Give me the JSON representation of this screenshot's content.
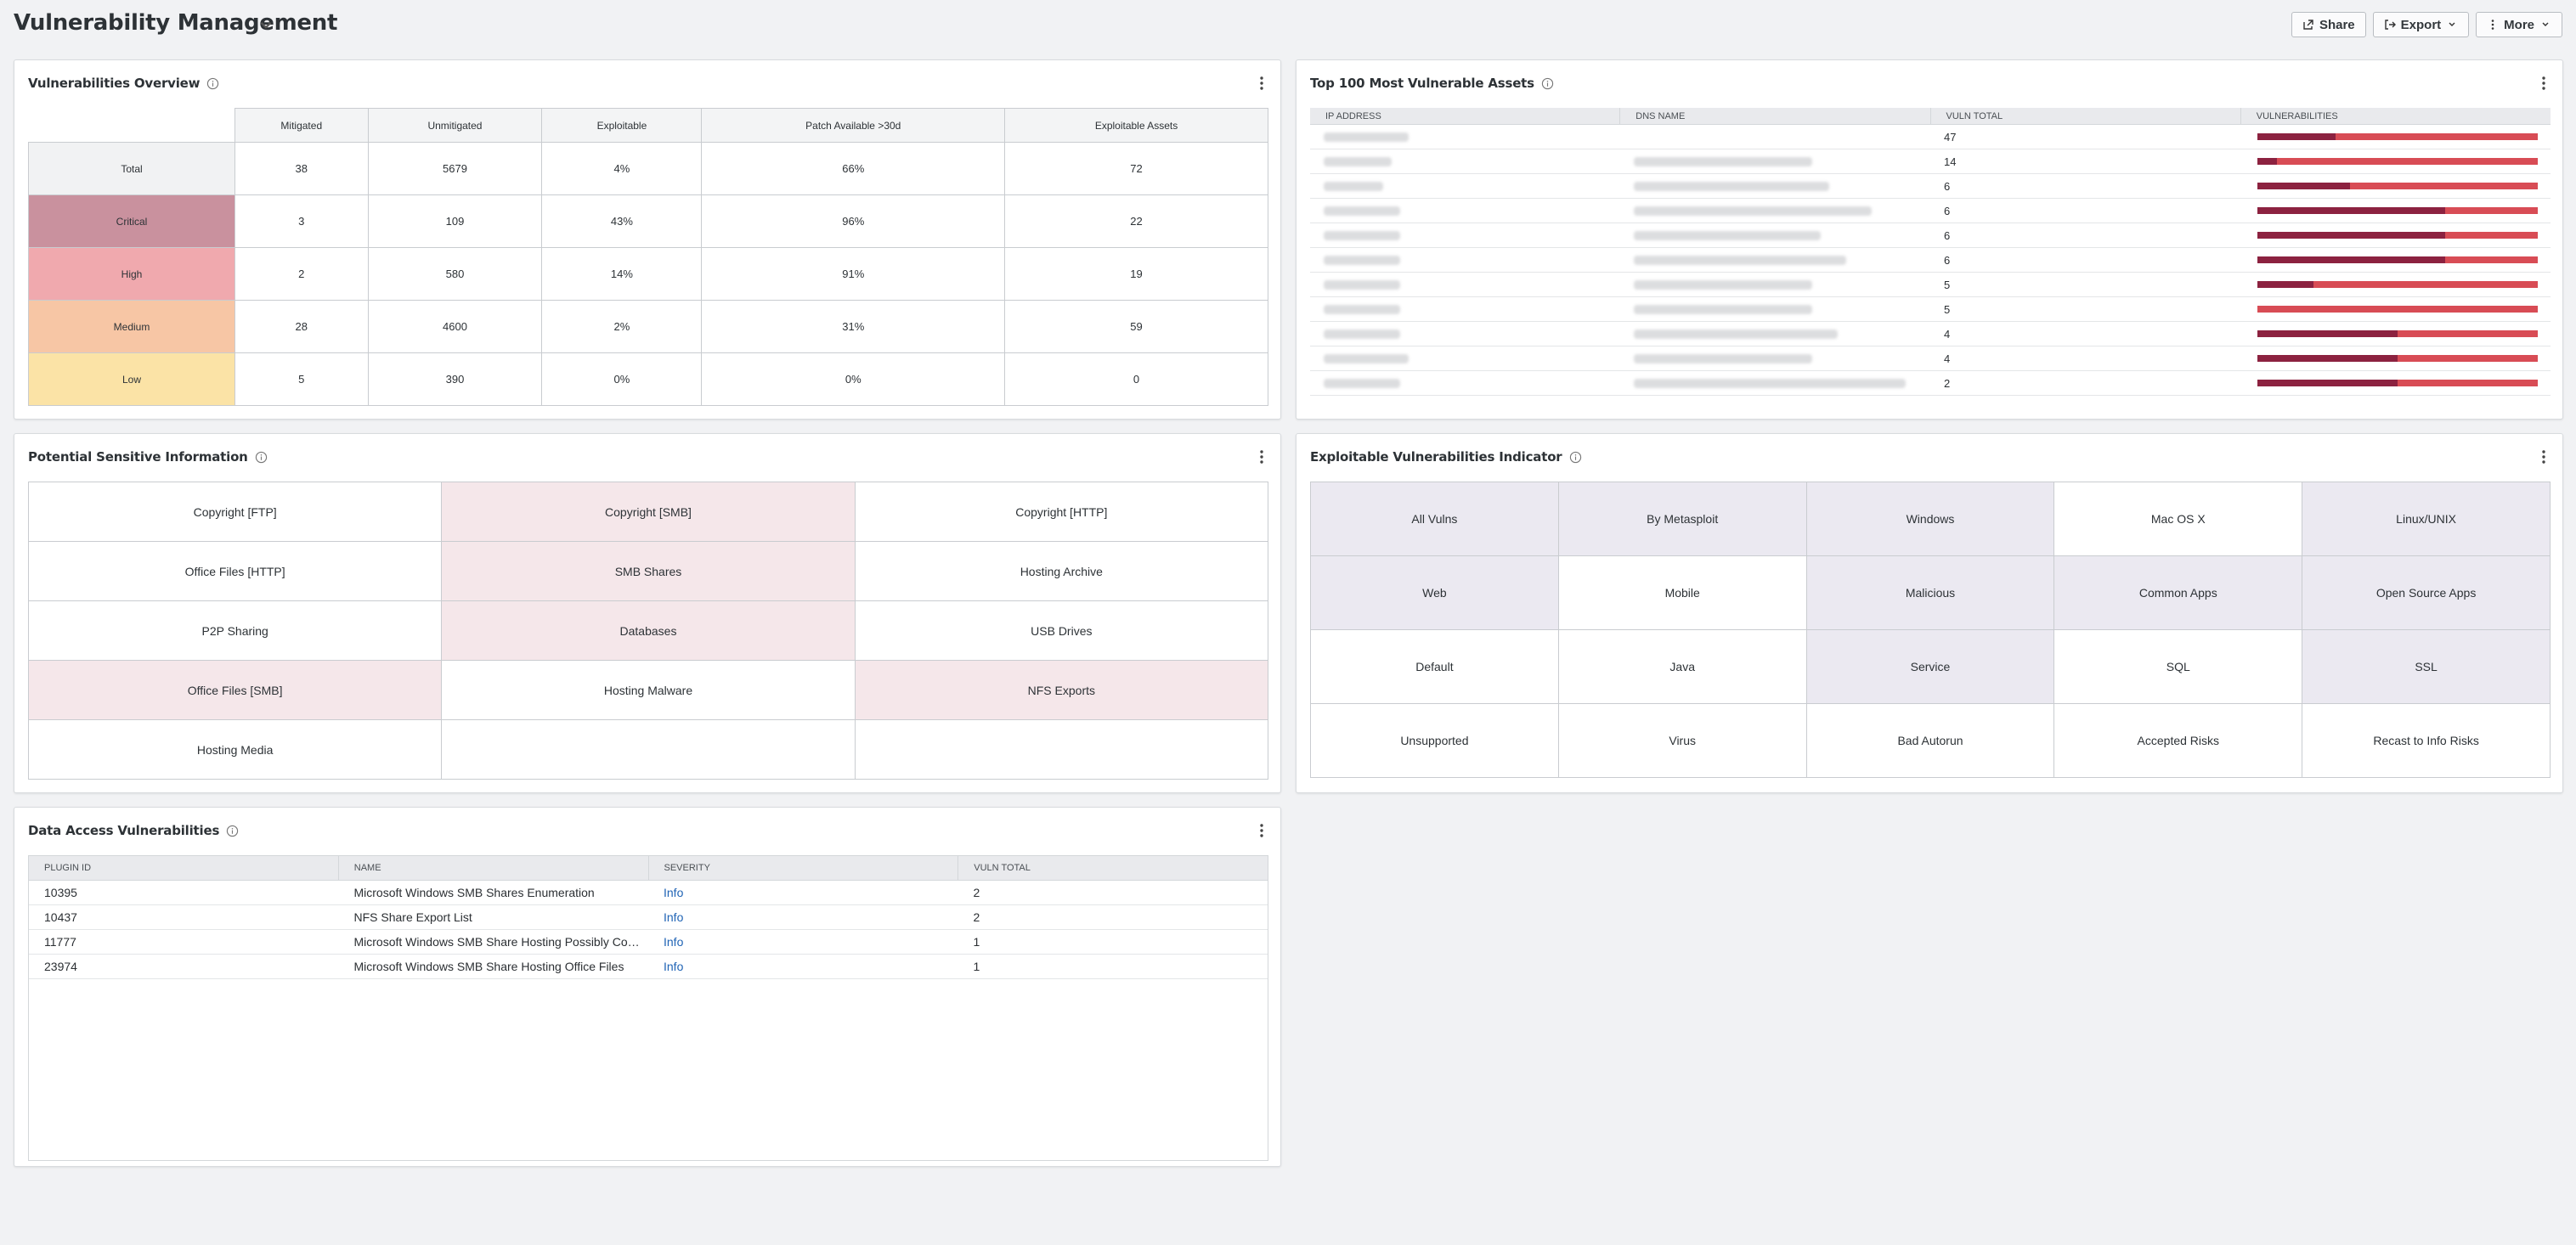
{
  "header": {
    "title": "Vulnerability Management",
    "share_label": "Share",
    "export_label": "Export",
    "more_label": "More"
  },
  "vuln_overview": {
    "title": "Vulnerabilities Overview",
    "columns": [
      "Mitigated",
      "Unmitigated",
      "Exploitable",
      "Patch Available >30d",
      "Exploitable Assets"
    ],
    "rows": [
      {
        "label": "Total",
        "color": "#f1f2f3",
        "values": [
          "38",
          "5679",
          "4%",
          "66%",
          "72"
        ]
      },
      {
        "label": "Critical",
        "color": "#c9919e",
        "values": [
          "3",
          "109",
          "43%",
          "96%",
          "22"
        ]
      },
      {
        "label": "High",
        "color": "#f0a9ae",
        "values": [
          "2",
          "580",
          "14%",
          "91%",
          "19"
        ]
      },
      {
        "label": "Medium",
        "color": "#f7c6a5",
        "values": [
          "28",
          "4600",
          "2%",
          "31%",
          "59"
        ]
      },
      {
        "label": "Low",
        "color": "#fbe3a6",
        "values": [
          "5",
          "390",
          "0%",
          "0%",
          "0"
        ]
      }
    ]
  },
  "top100": {
    "title": "Top 100 Most Vulnerable Assets",
    "columns": [
      "IP ADDRESS",
      "DNS NAME",
      "VULN TOTAL",
      "VULNERABILITIES"
    ],
    "rows": [
      {
        "total": "47",
        "critical_fraction": 0.28
      },
      {
        "total": "14",
        "critical_fraction": 0.07
      },
      {
        "total": "6",
        "critical_fraction": 0.33
      },
      {
        "total": "6",
        "critical_fraction": 0.67
      },
      {
        "total": "6",
        "critical_fraction": 0.67
      },
      {
        "total": "6",
        "critical_fraction": 0.67
      },
      {
        "total": "5",
        "critical_fraction": 0.2
      },
      {
        "total": "5",
        "critical_fraction": 0.0
      },
      {
        "total": "4",
        "critical_fraction": 0.5
      },
      {
        "total": "4",
        "critical_fraction": 0.5
      },
      {
        "total": "2",
        "critical_fraction": 0.5
      }
    ],
    "critical_color": "#8c2240",
    "high_color": "#d84c55"
  },
  "sensitive": {
    "title": "Potential Sensitive Information",
    "cells": [
      {
        "label": "Copyright [FTP]",
        "highlight": false
      },
      {
        "label": "Copyright [SMB]",
        "highlight": true
      },
      {
        "label": "Copyright [HTTP]",
        "highlight": false
      },
      {
        "label": "Office Files [HTTP]",
        "highlight": false
      },
      {
        "label": "SMB Shares",
        "highlight": true
      },
      {
        "label": "Hosting Archive",
        "highlight": false
      },
      {
        "label": "P2P Sharing",
        "highlight": false
      },
      {
        "label": "Databases",
        "highlight": true
      },
      {
        "label": "USB Drives",
        "highlight": false
      },
      {
        "label": "Office Files [SMB]",
        "highlight": true
      },
      {
        "label": "Hosting Malware",
        "highlight": false
      },
      {
        "label": "NFS Exports",
        "highlight": true
      },
      {
        "label": "Hosting Media",
        "highlight": false
      },
      {
        "label": "",
        "highlight": false
      },
      {
        "label": "",
        "highlight": false
      }
    ]
  },
  "exploitable": {
    "title": "Exploitable Vulnerabilities Indicator",
    "cells": [
      {
        "label": "All Vulns",
        "highlight": true
      },
      {
        "label": "By Metasploit",
        "highlight": true
      },
      {
        "label": "Windows",
        "highlight": true
      },
      {
        "label": "Mac OS X",
        "highlight": false
      },
      {
        "label": "Linux/UNIX",
        "highlight": true
      },
      {
        "label": "Web",
        "highlight": true
      },
      {
        "label": "Mobile",
        "highlight": false
      },
      {
        "label": "Malicious",
        "highlight": true
      },
      {
        "label": "Common Apps",
        "highlight": true
      },
      {
        "label": "Open Source Apps",
        "highlight": true
      },
      {
        "label": "Default",
        "highlight": false
      },
      {
        "label": "Java",
        "highlight": false
      },
      {
        "label": "Service",
        "highlight": true
      },
      {
        "label": "SQL",
        "highlight": false
      },
      {
        "label": "SSL",
        "highlight": true
      },
      {
        "label": "Unsupported",
        "highlight": false
      },
      {
        "label": "Virus",
        "highlight": false
      },
      {
        "label": "Bad Autorun",
        "highlight": false
      },
      {
        "label": "Accepted Risks",
        "highlight": false
      },
      {
        "label": "Recast to Info Risks",
        "highlight": false
      }
    ]
  },
  "data_access": {
    "title": "Data Access Vulnerabilities",
    "columns": [
      "PLUGIN ID",
      "NAME",
      "SEVERITY",
      "VULN TOTAL"
    ],
    "rows": [
      {
        "plugin_id": "10395",
        "name": "Microsoft Windows SMB Shares Enumeration",
        "severity": "Info",
        "total": "2"
      },
      {
        "plugin_id": "10437",
        "name": "NFS Share Export List",
        "severity": "Info",
        "total": "2"
      },
      {
        "plugin_id": "11777",
        "name": "Microsoft Windows SMB Share Hosting Possibly Copyrighted Material",
        "severity": "Info",
        "total": "1"
      },
      {
        "plugin_id": "23974",
        "name": "Microsoft Windows SMB Share Hosting Office Files",
        "severity": "Info",
        "total": "1"
      }
    ]
  }
}
